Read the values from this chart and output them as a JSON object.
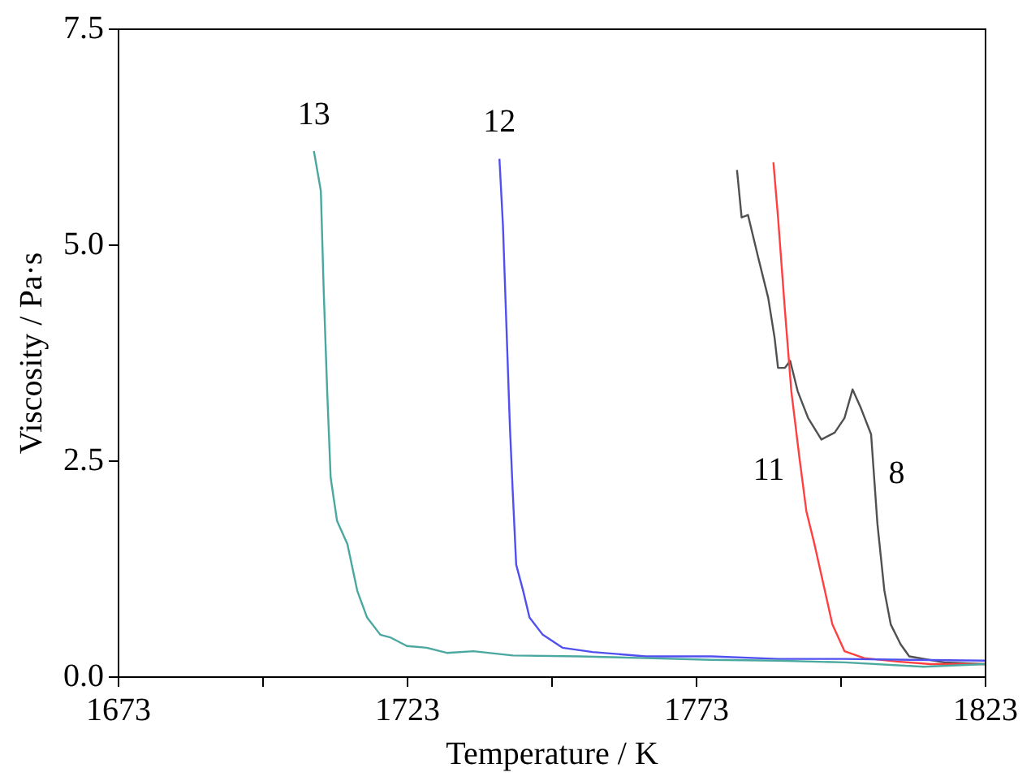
{
  "chart_data": {
    "type": "line",
    "xlabel": "Temperature / K",
    "ylabel": "Viscosity / Pa·s",
    "xlim": [
      1673,
      1823
    ],
    "xticks": [
      1673,
      {
        "value": 1698,
        "label": null
      },
      1723,
      {
        "value": 1748,
        "label": null
      },
      1773,
      {
        "value": 1798,
        "label": null
      },
      1823
    ],
    "ylim": [
      0,
      7.5
    ],
    "yticks": [
      {
        "value": 0,
        "label": "0.0"
      },
      2.5,
      {
        "value": 5,
        "label": "5.0"
      },
      7.5
    ],
    "grid": false,
    "legend": false,
    "marker": "none",
    "line_style": "solid",
    "series": [
      {
        "name": "13",
        "color": "#4aa8a0",
        "x": [
          1706.8,
          1708.0,
          1708.5,
          1709.1,
          1709.7,
          1710.8,
          1712.6,
          1714.3,
          1716.0,
          1718.3,
          1720.0,
          1722.9,
          1726.3,
          1729.8,
          1734.4,
          1741.2,
          1752.7,
          1764.2,
          1775.6,
          1787.1,
          1798.6,
          1812.3,
          1822.9
        ],
        "values": [
          6.09,
          5.63,
          4.47,
          3.31,
          2.31,
          1.81,
          1.54,
          1.0,
          0.69,
          0.49,
          0.46,
          0.36,
          0.34,
          0.28,
          0.3,
          0.25,
          0.24,
          0.22,
          0.2,
          0.19,
          0.17,
          0.12,
          0.15
        ]
      },
      {
        "name": "12",
        "color": "#5050f0",
        "x": [
          1738.9,
          1739.5,
          1740.1,
          1740.7,
          1741.2,
          1741.8,
          1743.0,
          1744.1,
          1746.4,
          1749.8,
          1755.0,
          1764.2,
          1775.6,
          1787.1,
          1798.6,
          1810.0,
          1822.9
        ],
        "values": [
          6.0,
          5.24,
          4.08,
          2.92,
          2.15,
          1.3,
          1.0,
          0.69,
          0.49,
          0.34,
          0.29,
          0.24,
          0.24,
          0.21,
          0.21,
          0.2,
          0.19
        ]
      },
      {
        "name": "11",
        "color": "#ff4040",
        "x": [
          1786.3,
          1787.1,
          1788.3,
          1789.4,
          1790.8,
          1792.0,
          1793.4,
          1795.2,
          1796.5,
          1798.6,
          1802.0,
          1807.7,
          1813.5,
          1822.9
        ],
        "values": [
          5.96,
          5.32,
          4.24,
          3.31,
          2.54,
          1.92,
          1.54,
          1.0,
          0.61,
          0.3,
          0.22,
          0.18,
          0.15,
          0.15
        ]
      },
      {
        "name": "8",
        "color": "#505050",
        "x": [
          1780.0,
          1780.8,
          1781.9,
          1783.7,
          1785.4,
          1786.5,
          1787.1,
          1788.3,
          1789.2,
          1790.5,
          1792.3,
          1794.6,
          1796.9,
          1798.6,
          1800.0,
          1801.4,
          1803.2,
          1804.3,
          1805.5,
          1806.6,
          1808.3,
          1809.8,
          1815.8,
          1822.9
        ],
        "values": [
          5.87,
          5.32,
          5.35,
          4.85,
          4.39,
          3.93,
          3.58,
          3.58,
          3.66,
          3.31,
          3.0,
          2.75,
          2.83,
          3.0,
          3.33,
          3.12,
          2.81,
          1.77,
          1.0,
          0.61,
          0.38,
          0.24,
          0.17,
          0.15
        ]
      }
    ]
  }
}
